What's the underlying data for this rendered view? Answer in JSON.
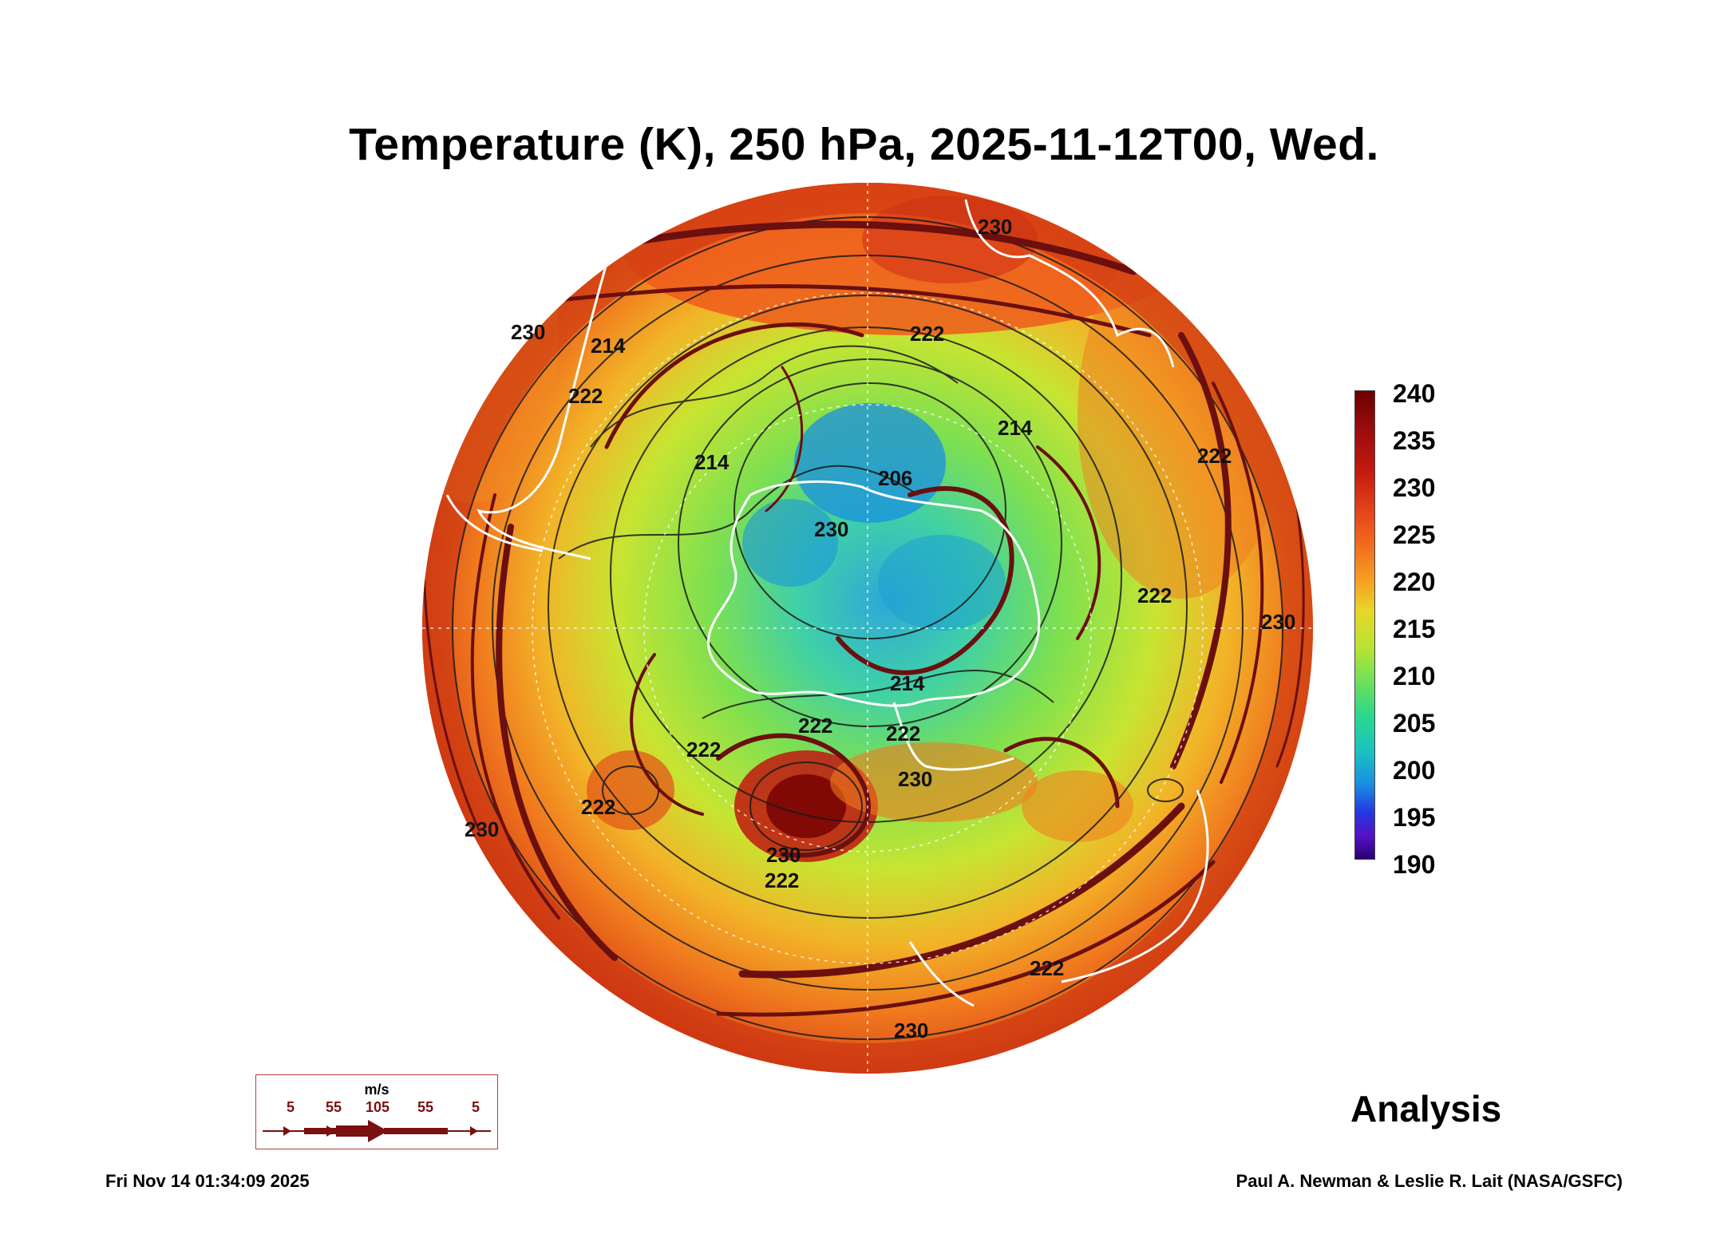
{
  "title": "Temperature (K), 250 hPa, 2025-11-12T00, Wed.",
  "colorbar": {
    "labels": [
      "240",
      "235",
      "230",
      "225",
      "220",
      "215",
      "210",
      "205",
      "200",
      "195",
      "190"
    ]
  },
  "contour_labels": [
    "230",
    "222",
    "214",
    "214",
    "214",
    "206",
    "222",
    "222",
    "214",
    "222",
    "230",
    "230",
    "222",
    "222",
    "222",
    "230",
    "230",
    "230",
    "230",
    "222",
    "222",
    "222",
    "230"
  ],
  "wind_scale": {
    "unit": "m/s",
    "values": [
      "5",
      "55",
      "105",
      "55",
      "5"
    ]
  },
  "analysis_label": "Analysis",
  "footer": {
    "timestamp": "Fri Nov 14 01:34:09 2025",
    "credit": "Paul A. Newman & Leslie R. Lait (NASA/GSFC)"
  },
  "colors": {
    "warm": "#d9381a",
    "cold": "#1a8fe0",
    "streamline": "#6b0f0f",
    "coast": "#ffffff"
  }
}
